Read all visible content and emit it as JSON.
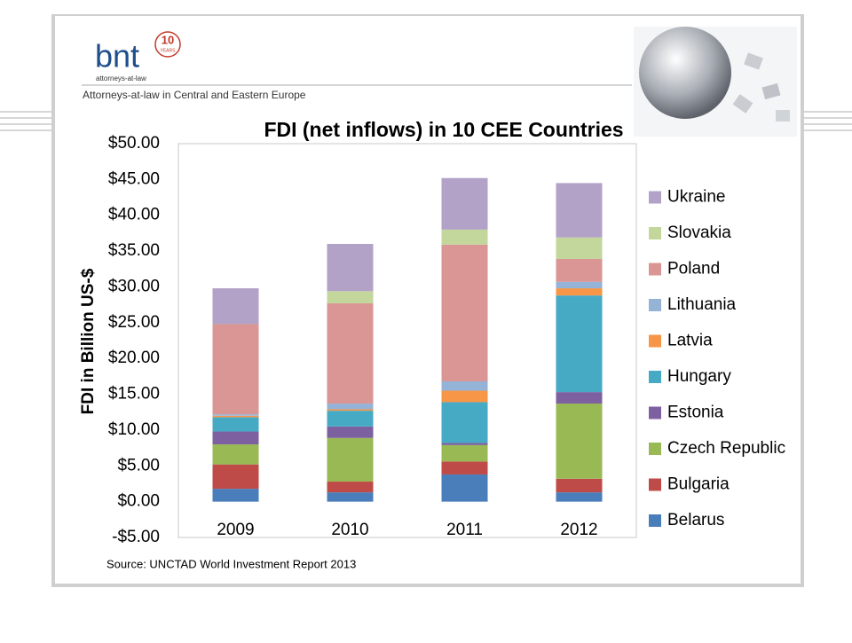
{
  "header": {
    "logo": "bnt",
    "badge_number": "10",
    "badge_text": "YEARS",
    "logo_sub": "attorneys-at-law",
    "tagline": "Attorneys-at-law in Central and Eastern Europe"
  },
  "chart_data": {
    "type": "stacked_bar",
    "title": "FDI (net inflows) in 10 CEE Countries",
    "y_label": "FDI in Billion US-$",
    "source": "Source: UNCTAD World Investment Report 2013",
    "categories": [
      "2009",
      "2010",
      "2011",
      "2012"
    ],
    "series": [
      {
        "name": "Belarus",
        "color": "#4a7ebb",
        "values": [
          1.8,
          1.3,
          3.8,
          1.3
        ]
      },
      {
        "name": "Bulgaria",
        "color": "#be4b48",
        "values": [
          3.4,
          1.5,
          1.8,
          1.9
        ]
      },
      {
        "name": "Czech Republic",
        "color": "#98b954",
        "values": [
          2.8,
          6.1,
          2.3,
          10.5
        ]
      },
      {
        "name": "Estonia",
        "color": "#7d60a0",
        "values": [
          1.8,
          1.6,
          0.3,
          1.6
        ]
      },
      {
        "name": "Hungary",
        "color": "#46aac5",
        "values": [
          2.0,
          2.2,
          5.7,
          13.5
        ]
      },
      {
        "name": "Latvia",
        "color": "#f79646",
        "values": [
          0.2,
          0.2,
          1.6,
          1.0
        ]
      },
      {
        "name": "Lithuania",
        "color": "#95b3d7",
        "values": [
          0.2,
          0.8,
          1.3,
          0.9
        ]
      },
      {
        "name": "Poland",
        "color": "#d99694",
        "values": [
          12.6,
          14.0,
          19.1,
          3.2
        ]
      },
      {
        "name": "Slovakia",
        "color": "#c3d69b",
        "values": [
          0,
          1.7,
          2.1,
          3.0
        ]
      },
      {
        "name": "Ukraine",
        "color": "#b3a2c7",
        "values": [
          5.0,
          6.6,
          7.2,
          7.6
        ]
      }
    ],
    "ylim": [
      -5,
      50
    ],
    "yticks": [
      {
        "value": -5,
        "label": "-$5.00"
      },
      {
        "value": 0,
        "label": "$0.00"
      },
      {
        "value": 5,
        "label": "$5.00"
      },
      {
        "value": 10,
        "label": "$10.00"
      },
      {
        "value": 15,
        "label": "$15.00"
      },
      {
        "value": 20,
        "label": "$20.00"
      },
      {
        "value": 25,
        "label": "$25.00"
      },
      {
        "value": 30,
        "label": "$30.00"
      },
      {
        "value": 35,
        "label": "$35.00"
      },
      {
        "value": 40,
        "label": "$40.00"
      },
      {
        "value": 45,
        "label": "$45.00"
      },
      {
        "value": 50,
        "label": "$50.00"
      }
    ],
    "grid": false,
    "legend": "right"
  }
}
